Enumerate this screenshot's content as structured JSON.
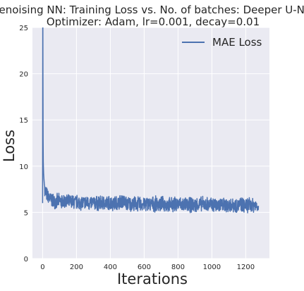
{
  "chart_data": {
    "type": "line",
    "title": "Denoising NN: Training Loss vs. No. of batches: Deeper U-Net",
    "subtitle": "Optimizer: Adam, lr=0.001, decay=0.01",
    "xlabel": "Iterations",
    "ylabel": "Loss",
    "xlim": [
      -60,
      1340
    ],
    "ylim": [
      0,
      25
    ],
    "xticks": [
      0,
      200,
      400,
      600,
      800,
      1000,
      1200
    ],
    "yticks": [
      0,
      5,
      10,
      15,
      20,
      25
    ],
    "grid": true,
    "legend_position": "top-right",
    "colors": {
      "line": "#4c72b0",
      "background": "#eaeaf2",
      "grid": "#ffffff"
    },
    "series": [
      {
        "name": "MAE Loss",
        "x": [
          0,
          1,
          2,
          3,
          4,
          5,
          6,
          8,
          10,
          12,
          15,
          20,
          25,
          30,
          40,
          50,
          60,
          80,
          100,
          150,
          200,
          250,
          300,
          350,
          400,
          450,
          470,
          500,
          550,
          600,
          650,
          700,
          750,
          800,
          850,
          900,
          950,
          1000,
          1050,
          1100,
          1150,
          1200,
          1250,
          1275
        ],
        "y": [
          6.0,
          30.0,
          20.0,
          13.0,
          10.5,
          9.8,
          9.2,
          8.6,
          8.1,
          7.8,
          7.4,
          7.1,
          6.9,
          6.7,
          6.5,
          6.4,
          6.3,
          6.2,
          6.2,
          6.1,
          6.1,
          6.0,
          6.0,
          6.0,
          6.0,
          6.0,
          6.3,
          5.9,
          5.9,
          5.9,
          5.9,
          5.9,
          5.8,
          5.9,
          5.8,
          5.8,
          5.9,
          5.8,
          5.8,
          5.8,
          5.8,
          5.8,
          5.8,
          5.7
        ],
        "noise_amplitude": 0.9
      }
    ]
  }
}
